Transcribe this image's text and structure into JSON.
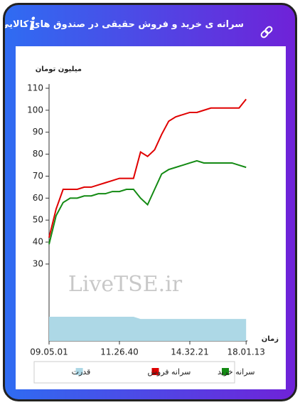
{
  "header": {
    "title": "سرانه ی خرید و فروش حقیقی در صندوق های کالایی"
  },
  "chart_data": {
    "type": "line",
    "y_label": "میلیون تومان",
    "x_label": "زمان",
    "watermark": "LiveTSE.ir",
    "categories": [
      "09.05.01",
      null,
      null,
      null,
      null,
      null,
      null,
      null,
      null,
      null,
      "11.26.40",
      null,
      null,
      null,
      null,
      null,
      null,
      null,
      null,
      null,
      "14.32.21",
      null,
      null,
      null,
      null,
      null,
      null,
      null,
      "18.01.13"
    ],
    "series": [
      {
        "name": "سرانه خرید",
        "color": "#138a13",
        "values": [
          39,
          52,
          58,
          60,
          60,
          61,
          61,
          62,
          62,
          63,
          63,
          64,
          64,
          60,
          57,
          64,
          71,
          73,
          74,
          75,
          76,
          77,
          76,
          76,
          76,
          76,
          76,
          75,
          74
        ]
      },
      {
        "name": "سرانه فروش",
        "color": "#e00000",
        "values": [
          42,
          55,
          64,
          64,
          64,
          65,
          65,
          66,
          67,
          68,
          69,
          69,
          69,
          81,
          79,
          82,
          89,
          95,
          97,
          98,
          99,
          99,
          100,
          101,
          101,
          101,
          101,
          101,
          105
        ]
      },
      {
        "name": "قدرت",
        "color": "#add8e6",
        "type": "area",
        "values": [
          6,
          6,
          6,
          6,
          6,
          6,
          6,
          6,
          6,
          6,
          6,
          6,
          6,
          5,
          5,
          5,
          5,
          5,
          5,
          5,
          5,
          5,
          5,
          5,
          5,
          5,
          5,
          5,
          5
        ]
      }
    ],
    "ylim": [
      -5,
      110
    ],
    "yticks": [
      30,
      40,
      50,
      60,
      70,
      80,
      90,
      100,
      110
    ],
    "grid": false
  }
}
